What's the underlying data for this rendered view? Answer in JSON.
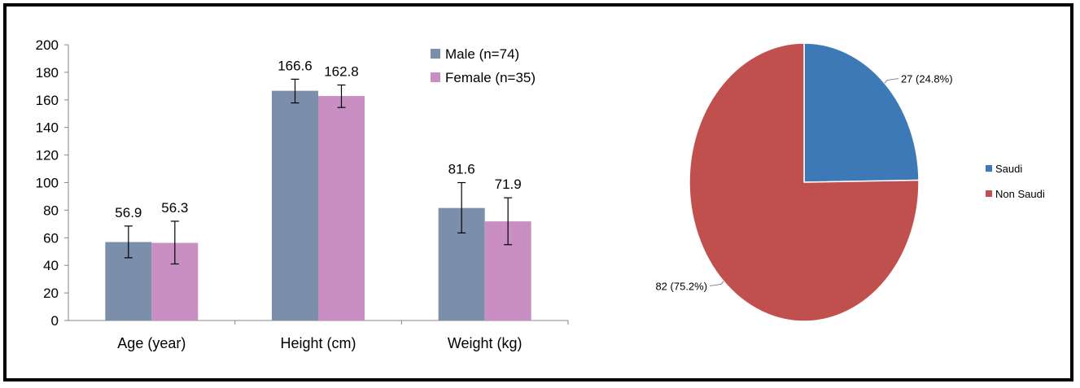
{
  "chart_data": [
    {
      "type": "bar",
      "categories": [
        "Age (year)",
        "Height (cm)",
        "Weight (kg)"
      ],
      "series": [
        {
          "name": "Male (n=74)",
          "color": "#7b8faa",
          "values": [
            56.9,
            166.6,
            81.6
          ],
          "error_low": [
            45.5,
            157.8,
            63.5
          ],
          "error_high": [
            68.5,
            175.0,
            100.0
          ],
          "labels": [
            "56.9",
            "166.6",
            "81.6"
          ]
        },
        {
          "name": "Female (n=35)",
          "color": "#c98fc2",
          "values": [
            56.3,
            162.8,
            71.9
          ],
          "error_low": [
            41.0,
            154.5,
            55.0
          ],
          "error_high": [
            72.0,
            170.8,
            89.0
          ],
          "labels": [
            "56.3",
            "162.8",
            "71.9"
          ]
        }
      ],
      "ylim": [
        0,
        200
      ],
      "yticks": [
        "0",
        "20",
        "40",
        "60",
        "80",
        "100",
        "120",
        "140",
        "160",
        "180",
        "200"
      ],
      "legend_position": "top-right",
      "grid": false
    },
    {
      "type": "pie",
      "slices": [
        {
          "name": "Saudi",
          "value": 27,
          "percent": 24.8,
          "label": "27 (24.8%)",
          "color": "#3d78b7"
        },
        {
          "name": "Non Saudi",
          "value": 82,
          "percent": 75.2,
          "label": "82 (75.2%)",
          "color": "#c0504d"
        }
      ],
      "legend_position": "right"
    }
  ]
}
